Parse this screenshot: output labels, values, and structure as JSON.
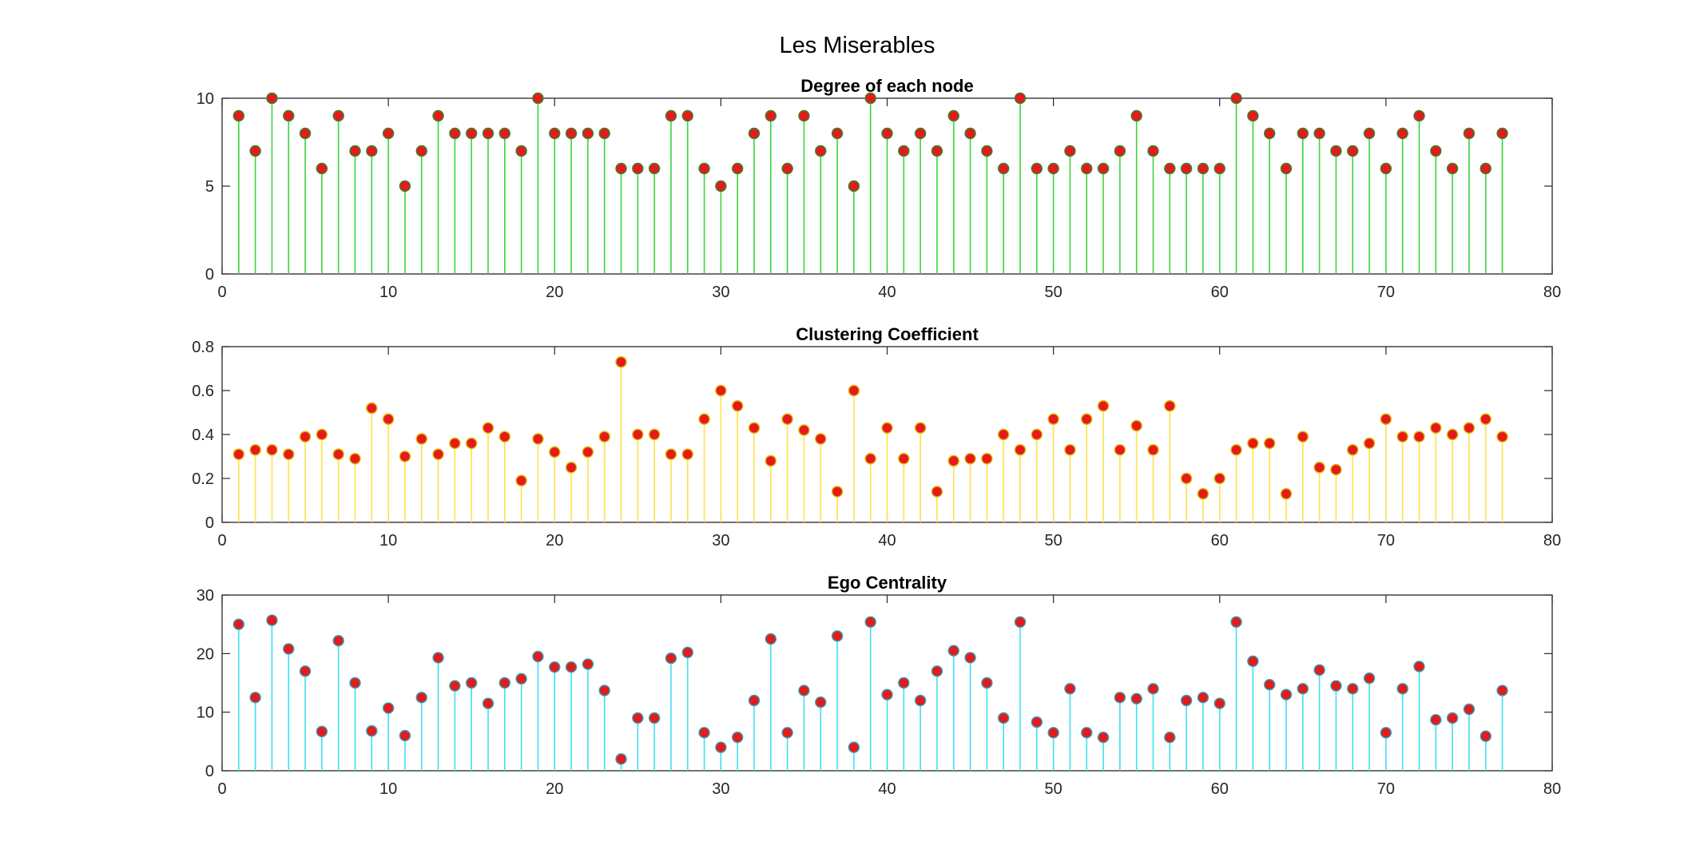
{
  "figure_title": "Les Miserables",
  "chart_data": [
    {
      "type": "stem",
      "title": "Degree of each node",
      "xlim": [
        0,
        80
      ],
      "ylim": [
        0,
        10
      ],
      "xticks": [
        0,
        10,
        20,
        30,
        40,
        50,
        60,
        70,
        80
      ],
      "yticks": [
        0,
        5,
        10
      ],
      "stem_color": "#3ad63a",
      "marker_color": "#e41a1c",
      "marker_edge_color": "#2e8b2e",
      "x": [
        1,
        2,
        3,
        4,
        5,
        6,
        7,
        8,
        9,
        10,
        11,
        12,
        13,
        14,
        15,
        16,
        17,
        18,
        19,
        20,
        21,
        22,
        23,
        24,
        25,
        26,
        27,
        28,
        29,
        30,
        31,
        32,
        33,
        34,
        35,
        36,
        37,
        38,
        39,
        40,
        41,
        42,
        43,
        44,
        45,
        46,
        47,
        48,
        49,
        50,
        51,
        52,
        53,
        54,
        55,
        56,
        57,
        58,
        59,
        60,
        61,
        62,
        63,
        64,
        65,
        66,
        67,
        68,
        69,
        70,
        71,
        72,
        73,
        74,
        75,
        76,
        77
      ],
      "values": [
        9,
        7,
        10,
        9,
        8,
        6,
        9,
        7,
        7,
        8,
        5,
        7,
        9,
        8,
        8,
        8,
        8,
        7,
        10,
        8,
        8,
        8,
        8,
        6,
        6,
        6,
        9,
        9,
        6,
        5,
        6,
        8,
        9,
        6,
        9,
        7,
        8,
        5,
        10,
        8,
        7,
        8,
        7,
        9,
        8,
        7,
        6,
        10,
        6,
        6,
        7,
        6,
        6,
        7,
        9,
        7,
        6,
        6,
        6,
        6,
        10,
        9,
        8,
        6,
        8,
        8,
        7,
        7,
        8,
        6,
        8,
        9,
        7,
        6,
        8,
        6,
        8
      ]
    },
    {
      "type": "stem",
      "title": "Clustering Coefficient",
      "xlim": [
        0,
        80
      ],
      "ylim": [
        0,
        0.8
      ],
      "xticks": [
        0,
        10,
        20,
        30,
        40,
        50,
        60,
        70,
        80
      ],
      "yticks": [
        0,
        0.2,
        0.4,
        0.6,
        0.8
      ],
      "stem_color": "#ffe24a",
      "marker_color": "#e41a1c",
      "marker_edge_color": "#e0b800",
      "x": [
        1,
        2,
        3,
        4,
        5,
        6,
        7,
        8,
        9,
        10,
        11,
        12,
        13,
        14,
        15,
        16,
        17,
        18,
        19,
        20,
        21,
        22,
        23,
        24,
        25,
        26,
        27,
        28,
        29,
        30,
        31,
        32,
        33,
        34,
        35,
        36,
        37,
        38,
        39,
        40,
        41,
        42,
        43,
        44,
        45,
        46,
        47,
        48,
        49,
        50,
        51,
        52,
        53,
        54,
        55,
        56,
        57,
        58,
        59,
        60,
        61,
        62,
        63,
        64,
        65,
        66,
        67,
        68,
        69,
        70,
        71,
        72,
        73,
        74,
        75,
        76,
        77
      ],
      "values": [
        0.31,
        0.33,
        0.33,
        0.31,
        0.39,
        0.4,
        0.31,
        0.29,
        0.52,
        0.47,
        0.3,
        0.38,
        0.31,
        0.36,
        0.36,
        0.43,
        0.39,
        0.19,
        0.38,
        0.32,
        0.25,
        0.32,
        0.39,
        0.73,
        0.4,
        0.4,
        0.31,
        0.31,
        0.47,
        0.6,
        0.53,
        0.43,
        0.28,
        0.47,
        0.42,
        0.38,
        0.14,
        0.6,
        0.29,
        0.43,
        0.29,
        0.43,
        0.14,
        0.28,
        0.29,
        0.29,
        0.4,
        0.33,
        0.4,
        0.47,
        0.33,
        0.47,
        0.53,
        0.33,
        0.44,
        0.33,
        0.53,
        0.2,
        0.13,
        0.2,
        0.33,
        0.36,
        0.36,
        0.13,
        0.39,
        0.25,
        0.24,
        0.33,
        0.36,
        0.47,
        0.39,
        0.39,
        0.43,
        0.4,
        0.43,
        0.47,
        0.39
      ]
    },
    {
      "type": "stem",
      "title": "Ego Centrality",
      "xlim": [
        0,
        80
      ],
      "ylim": [
        0,
        30
      ],
      "xticks": [
        0,
        10,
        20,
        30,
        40,
        50,
        60,
        70,
        80
      ],
      "yticks": [
        0,
        10,
        20,
        30
      ],
      "stem_color": "#3fe0f0",
      "marker_color": "#e41a1c",
      "marker_edge_color": "#2aa8b8",
      "x": [
        1,
        2,
        3,
        4,
        5,
        6,
        7,
        8,
        9,
        10,
        11,
        12,
        13,
        14,
        15,
        16,
        17,
        18,
        19,
        20,
        21,
        22,
        23,
        24,
        25,
        26,
        27,
        28,
        29,
        30,
        31,
        32,
        33,
        34,
        35,
        36,
        37,
        38,
        39,
        40,
        41,
        42,
        43,
        44,
        45,
        46,
        47,
        48,
        49,
        50,
        51,
        52,
        53,
        54,
        55,
        56,
        57,
        58,
        59,
        60,
        61,
        62,
        63,
        64,
        65,
        66,
        67,
        68,
        69,
        70,
        71,
        72,
        73,
        74,
        75,
        76,
        77
      ],
      "values": [
        25,
        12.5,
        25.7,
        20.8,
        17,
        6.7,
        22.2,
        15,
        6.8,
        10.7,
        6,
        12.5,
        19.3,
        14.5,
        15,
        11.5,
        15,
        15.7,
        19.5,
        17.7,
        17.7,
        18.2,
        13.7,
        2,
        9,
        9,
        19.2,
        20.2,
        6.5,
        4,
        5.7,
        12,
        22.5,
        6.5,
        13.7,
        11.7,
        23,
        4,
        25.4,
        13,
        15,
        12,
        17,
        20.5,
        19.3,
        15,
        9,
        25.4,
        8.3,
        6.5,
        14,
        6.5,
        5.7,
        12.5,
        12.3,
        14,
        5.7,
        12,
        12.5,
        11.5,
        25.4,
        18.7,
        14.7,
        13,
        14,
        17.2,
        14.5,
        14,
        15.8,
        6.5,
        14,
        17.8,
        8.7,
        9,
        10.5,
        5.9,
        13.7
      ]
    }
  ]
}
